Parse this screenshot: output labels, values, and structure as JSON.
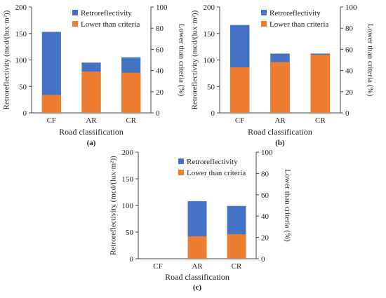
{
  "colors": {
    "retro": "#4472C4",
    "lower": "#ED7D31",
    "axis": "#444444",
    "text": "#222222"
  },
  "chart_data": [
    {
      "panel_label": "(a)",
      "type": "bar",
      "categories": [
        "CF",
        "AR",
        "CR"
      ],
      "xlabel": "Road classification",
      "ylabel": "Retroreflectivity (mcd/(lux·m²))",
      "y2label": "Lower than criteria (%)",
      "ylim": [
        0,
        200
      ],
      "y_ticks": [
        0,
        50,
        100,
        150,
        200
      ],
      "y2lim": [
        0,
        100
      ],
      "y2_ticks": [
        0,
        20,
        40,
        60,
        80,
        100
      ],
      "legend_position": "top-right",
      "series": [
        {
          "name": "Retroreflectivity",
          "axis": "left",
          "color": "#4472C4",
          "values": [
            153,
            95,
            105
          ]
        },
        {
          "name": "Lower than criteria",
          "axis": "right",
          "color": "#ED7D31",
          "values": [
            17,
            39,
            38
          ]
        }
      ]
    },
    {
      "panel_label": "(b)",
      "type": "bar",
      "categories": [
        "CF",
        "AR",
        "CR"
      ],
      "xlabel": "Road classification",
      "ylabel": "Retroreflectivity (mcd/(lux·m²))",
      "y2label": "Lower than criteria (%)",
      "ylim": [
        0,
        200
      ],
      "y_ticks": [
        0,
        50,
        100,
        150,
        200
      ],
      "y2lim": [
        0,
        100
      ],
      "y2_ticks": [
        0,
        20,
        40,
        60,
        80,
        100
      ],
      "legend_position": "top-right",
      "series": [
        {
          "name": "Retroreflectivity",
          "axis": "left",
          "color": "#4472C4",
          "values": [
            166,
            112,
            112
          ]
        },
        {
          "name": "Lower than criteria",
          "axis": "right",
          "color": "#ED7D31",
          "values": [
            43,
            48,
            55
          ]
        }
      ]
    },
    {
      "panel_label": "(c)",
      "type": "bar",
      "categories": [
        "CF",
        "AR",
        "CR"
      ],
      "xlabel": "Road classification",
      "ylabel": "Retroreflectivity (mcd/(lux·m²))",
      "y2label": "Lower than criteria (%)",
      "ylim": [
        0,
        200
      ],
      "y_ticks": [
        0,
        50,
        100,
        150,
        200
      ],
      "y2lim": [
        0,
        100
      ],
      "y2_ticks": [
        0,
        20,
        40,
        60,
        80,
        100
      ],
      "legend_position": "top-right",
      "series": [
        {
          "name": "Retroreflectivity",
          "axis": "left",
          "color": "#4472C4",
          "values": [
            0,
            108,
            99
          ]
        },
        {
          "name": "Lower than criteria",
          "axis": "right",
          "color": "#ED7D31",
          "values": [
            0,
            21,
            23
          ]
        }
      ]
    }
  ]
}
